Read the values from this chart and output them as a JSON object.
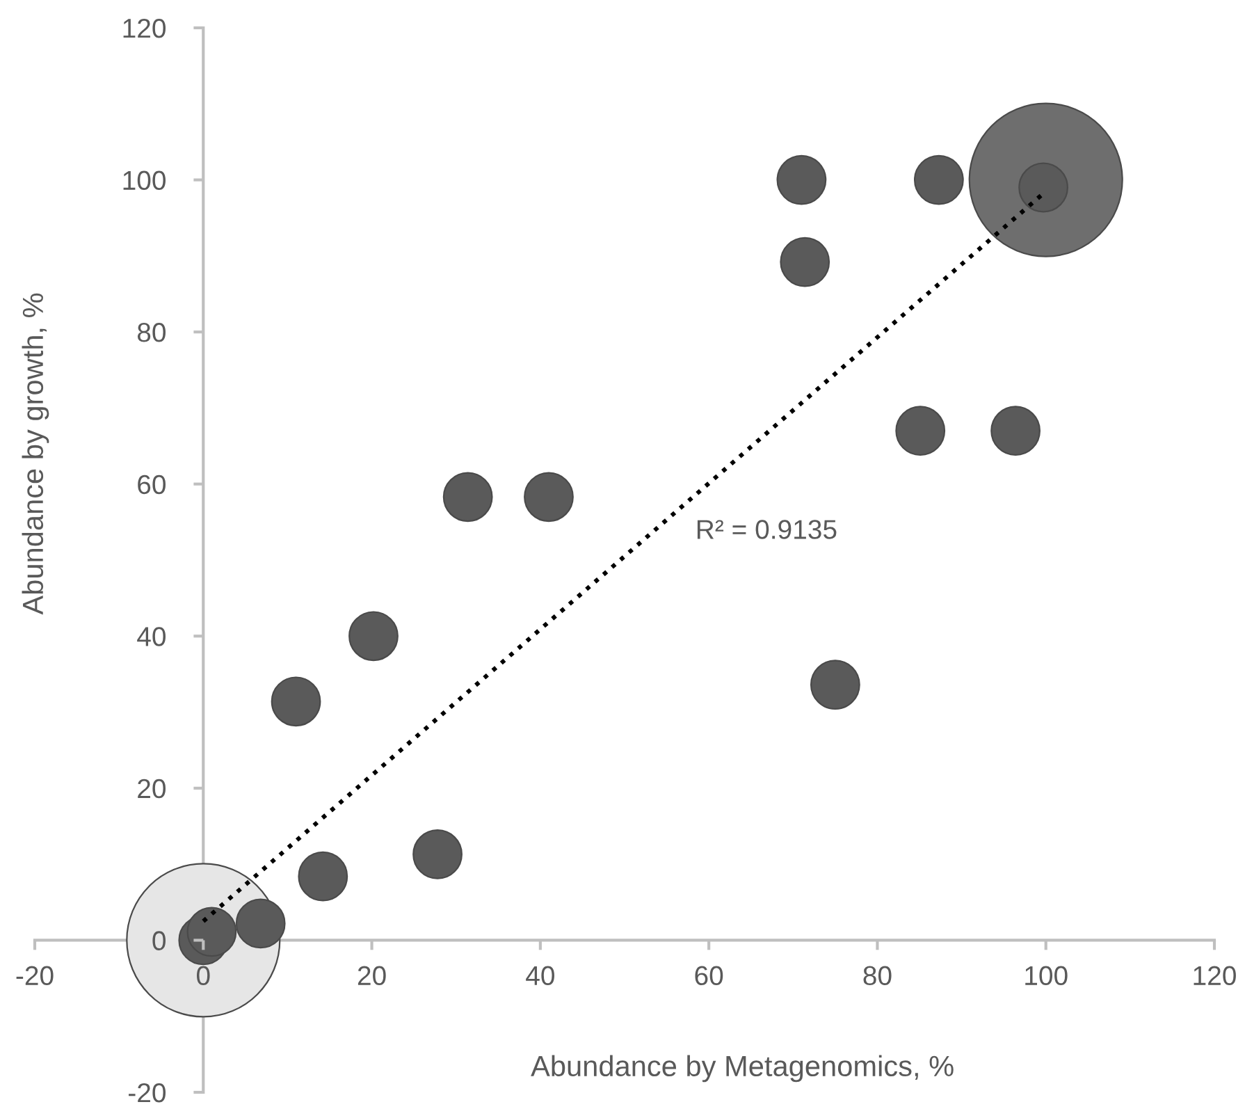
{
  "chart_data": {
    "type": "bubble",
    "xlabel": "Abundance by Metagenomics, %",
    "ylabel": "Abundance by growth, %",
    "xlim": [
      -20,
      120
    ],
    "xticks": [
      -20,
      0,
      20,
      40,
      60,
      80,
      100,
      120
    ],
    "ylim": [
      -20,
      120
    ],
    "yticks": [
      -20,
      0,
      20,
      40,
      60,
      80,
      100,
      120
    ],
    "grid": false,
    "legend": false,
    "annotations": [
      "R² = 0.9135"
    ],
    "series": [
      {
        "x": [
          0,
          100,
          0,
          1,
          6.8,
          14.2,
          27.8,
          11,
          20.2,
          31.4,
          41,
          75,
          85.1,
          96.4,
          71.4,
          71,
          87.3,
          99.7
        ],
        "values": [
          0,
          100,
          0,
          1.1,
          2.2,
          8.4,
          11.3,
          31.4,
          40,
          58.3,
          58.3,
          33.6,
          67,
          67,
          89.2,
          100,
          100,
          99
        ],
        "sizes": [
          1,
          1,
          0.1,
          0.1,
          0.1,
          0.1,
          0.1,
          0.1,
          0.1,
          0.1,
          0.1,
          0.1,
          0.1,
          0.1,
          0.1,
          0.1,
          0.1,
          0.1
        ],
        "colors": [
          "#e6e6e6",
          "#6e6e6e",
          "#5a5a5a",
          "#5a5a5a",
          "#5a5a5a",
          "#5a5a5a",
          "#5a5a5a",
          "#5a5a5a",
          "#5a5a5a",
          "#5a5a5a",
          "#5a5a5a",
          "#5a5a5a",
          "#5a5a5a",
          "#5a5a5a",
          "#5a5a5a",
          "#5a5a5a",
          "#5a5a5a",
          "#5a5a5a"
        ]
      },
      {
        "type": "line",
        "x": [
          0,
          100
        ],
        "values": [
          2.5,
          98.5
        ],
        "color": "#000000",
        "line_style": "dotted",
        "marker": "none"
      }
    ]
  }
}
